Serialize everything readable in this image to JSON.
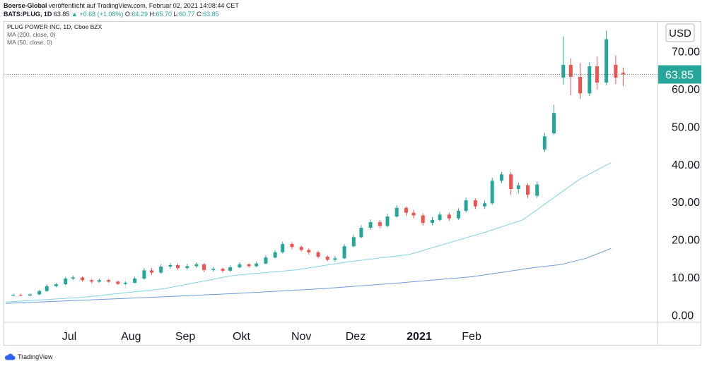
{
  "header": {
    "brand": "Boerse-Global",
    "published": " veröffentlicht auf TradingView.com, Februar 02, 2021 14:08:44 CET"
  },
  "ticker": {
    "symbol": "BATS:PLUG, 1D",
    "last": "63.85",
    "arrow": "▲",
    "change": "+0.68 (+1.08%)",
    "o_label": "O:",
    "o": "64.29",
    "h_label": "H:",
    "h": "65.70",
    "l_label": "L:",
    "l": "60.77",
    "c_label": "C:",
    "c": "63.85"
  },
  "legend": {
    "title": "PLUG POWER INC, 1D, Cboe BZX",
    "ma200": "MA (200, close, 0)",
    "ma50": "MA (50, close, 0)"
  },
  "footer": {
    "brand": "TradingView"
  },
  "colors": {
    "up": "#26a69a",
    "down": "#ef5350",
    "ma50": "#7fd3e6",
    "ma200": "#6b9bd9",
    "grid": "#c8cbd1"
  },
  "chart_data": {
    "type": "candlestick",
    "currency": "USD",
    "last_price": 63.85,
    "last_price_label": "63.85",
    "y_ticks": [
      "70.00",
      "60.00",
      "50.00",
      "40.00",
      "30.00",
      "20.00",
      "10.00",
      "0.00"
    ],
    "y_tick_values": [
      70,
      60,
      50,
      40,
      30,
      20,
      10,
      0
    ],
    "ylim": [
      -2,
      78
    ],
    "x_ticks": [
      "Jul",
      "Aug",
      "Sep",
      "Okt",
      "Nov",
      "Dez",
      "2021",
      "Feb"
    ],
    "x_tick_dates": [
      "2020-07-01",
      "2020-08-03",
      "2020-09-01",
      "2020-10-01",
      "2020-11-02",
      "2020-12-01",
      "2021-01-04",
      "2021-02-01"
    ],
    "bars": [
      {
        "t": "2020-06-01",
        "o": 5.2,
        "c": 5.3,
        "h": 5.6,
        "l": 4.9
      },
      {
        "t": "2020-06-05",
        "o": 5.3,
        "c": 5.1,
        "h": 5.6,
        "l": 4.9
      },
      {
        "t": "2020-06-10",
        "o": 5.1,
        "c": 5.4,
        "h": 5.7,
        "l": 4.9
      },
      {
        "t": "2020-06-15",
        "o": 5.4,
        "c": 6.3,
        "h": 6.6,
        "l": 5.2
      },
      {
        "t": "2020-06-19",
        "o": 6.3,
        "c": 7.6,
        "h": 8.0,
        "l": 6.1
      },
      {
        "t": "2020-06-24",
        "o": 7.6,
        "c": 8.1,
        "h": 8.4,
        "l": 7.3
      },
      {
        "t": "2020-06-29",
        "o": 8.1,
        "c": 9.6,
        "h": 10.1,
        "l": 7.9
      },
      {
        "t": "2020-07-03",
        "o": 9.6,
        "c": 9.9,
        "h": 10.4,
        "l": 9.2
      },
      {
        "t": "2020-07-08",
        "o": 9.9,
        "c": 9.2,
        "h": 10.2,
        "l": 8.8
      },
      {
        "t": "2020-07-13",
        "o": 9.2,
        "c": 8.8,
        "h": 9.5,
        "l": 8.3
      },
      {
        "t": "2020-07-17",
        "o": 8.8,
        "c": 9.2,
        "h": 9.6,
        "l": 8.5
      },
      {
        "t": "2020-07-22",
        "o": 9.2,
        "c": 8.8,
        "h": 9.5,
        "l": 8.5
      },
      {
        "t": "2020-07-27",
        "o": 8.8,
        "c": 8.2,
        "h": 9.1,
        "l": 7.9
      },
      {
        "t": "2020-07-31",
        "o": 8.2,
        "c": 8.5,
        "h": 8.9,
        "l": 7.9
      },
      {
        "t": "2020-08-05",
        "o": 8.5,
        "c": 9.6,
        "h": 10.1,
        "l": 8.3
      },
      {
        "t": "2020-08-10",
        "o": 9.6,
        "c": 11.8,
        "h": 12.4,
        "l": 9.3
      },
      {
        "t": "2020-08-14",
        "o": 11.8,
        "c": 11.2,
        "h": 12.4,
        "l": 10.6
      },
      {
        "t": "2020-08-19",
        "o": 11.2,
        "c": 12.8,
        "h": 13.4,
        "l": 10.9
      },
      {
        "t": "2020-08-24",
        "o": 12.8,
        "c": 13.2,
        "h": 13.8,
        "l": 12.2
      },
      {
        "t": "2020-08-28",
        "o": 13.2,
        "c": 12.4,
        "h": 13.6,
        "l": 11.9
      },
      {
        "t": "2020-09-02",
        "o": 12.4,
        "c": 12.9,
        "h": 13.5,
        "l": 12.0
      },
      {
        "t": "2020-09-07",
        "o": 12.9,
        "c": 13.4,
        "h": 13.9,
        "l": 12.5
      },
      {
        "t": "2020-09-11",
        "o": 13.4,
        "c": 11.9,
        "h": 13.7,
        "l": 11.3
      },
      {
        "t": "2020-09-16",
        "o": 11.9,
        "c": 12.2,
        "h": 12.7,
        "l": 11.5
      },
      {
        "t": "2020-09-21",
        "o": 12.2,
        "c": 11.7,
        "h": 12.5,
        "l": 11.2
      },
      {
        "t": "2020-09-25",
        "o": 11.7,
        "c": 12.6,
        "h": 13.1,
        "l": 11.4
      },
      {
        "t": "2020-09-30",
        "o": 12.6,
        "c": 13.4,
        "h": 13.9,
        "l": 12.3
      },
      {
        "t": "2020-10-05",
        "o": 13.4,
        "c": 12.9,
        "h": 13.7,
        "l": 12.5
      },
      {
        "t": "2020-10-09",
        "o": 12.9,
        "c": 13.6,
        "h": 14.1,
        "l": 12.6
      },
      {
        "t": "2020-10-14",
        "o": 13.6,
        "c": 15.2,
        "h": 15.8,
        "l": 13.4
      },
      {
        "t": "2020-10-19",
        "o": 15.2,
        "c": 16.6,
        "h": 17.2,
        "l": 15.0
      },
      {
        "t": "2020-10-23",
        "o": 16.6,
        "c": 18.8,
        "h": 19.4,
        "l": 16.3
      },
      {
        "t": "2020-10-28",
        "o": 18.8,
        "c": 18.0,
        "h": 19.3,
        "l": 17.4
      },
      {
        "t": "2020-11-02",
        "o": 18.0,
        "c": 17.2,
        "h": 18.4,
        "l": 16.8
      },
      {
        "t": "2020-11-06",
        "o": 17.2,
        "c": 16.6,
        "h": 17.6,
        "l": 16.0
      },
      {
        "t": "2020-11-11",
        "o": 16.6,
        "c": 15.4,
        "h": 17.0,
        "l": 15.0
      },
      {
        "t": "2020-11-16",
        "o": 15.4,
        "c": 14.6,
        "h": 15.8,
        "l": 14.2
      },
      {
        "t": "2020-11-20",
        "o": 14.6,
        "c": 15.0,
        "h": 15.6,
        "l": 14.1
      },
      {
        "t": "2020-11-25",
        "o": 15.0,
        "c": 18.2,
        "h": 18.8,
        "l": 14.8
      },
      {
        "t": "2020-11-30",
        "o": 18.2,
        "c": 20.6,
        "h": 21.2,
        "l": 17.9
      },
      {
        "t": "2020-12-04",
        "o": 20.6,
        "c": 23.1,
        "h": 23.8,
        "l": 20.3
      },
      {
        "t": "2020-12-09",
        "o": 23.1,
        "c": 24.6,
        "h": 25.3,
        "l": 22.6
      },
      {
        "t": "2020-12-14",
        "o": 24.6,
        "c": 23.6,
        "h": 25.2,
        "l": 22.9
      },
      {
        "t": "2020-12-18",
        "o": 23.6,
        "c": 26.1,
        "h": 26.8,
        "l": 23.2
      },
      {
        "t": "2020-12-23",
        "o": 26.1,
        "c": 28.4,
        "h": 29.1,
        "l": 25.8
      },
      {
        "t": "2020-12-28",
        "o": 28.4,
        "c": 27.1,
        "h": 28.8,
        "l": 26.3
      },
      {
        "t": "2021-01-01",
        "o": 27.1,
        "c": 26.4,
        "h": 27.9,
        "l": 25.6
      },
      {
        "t": "2021-01-06",
        "o": 26.4,
        "c": 24.4,
        "h": 26.9,
        "l": 23.7
      },
      {
        "t": "2021-01-11",
        "o": 24.4,
        "c": 25.2,
        "h": 26.0,
        "l": 23.8
      },
      {
        "t": "2021-01-15",
        "o": 25.2,
        "c": 26.6,
        "h": 27.3,
        "l": 24.8
      },
      {
        "t": "2021-01-20",
        "o": 26.6,
        "c": 25.6,
        "h": 27.1,
        "l": 24.9
      },
      {
        "t": "2021-01-25",
        "o": 25.6,
        "c": 27.6,
        "h": 28.3,
        "l": 25.2
      },
      {
        "t": "2021-01-29",
        "o": 27.6,
        "c": 30.4,
        "h": 31.1,
        "l": 27.2
      },
      {
        "t": "2021-02-03",
        "o": 30.4,
        "c": 28.8,
        "h": 30.9,
        "l": 28.1
      },
      {
        "t": "2021-02-08",
        "o": 28.8,
        "c": 29.6,
        "h": 30.3,
        "l": 28.1
      },
      {
        "t": "2021-02-12",
        "o": 29.6,
        "c": 35.6,
        "h": 36.4,
        "l": 29.2
      },
      {
        "t": "2021-02-17",
        "o": 35.6,
        "c": 37.3,
        "h": 38.0,
        "l": 35.0
      },
      {
        "t": "2021-02-22",
        "o": 37.3,
        "c": 33.4,
        "h": 37.9,
        "l": 31.8
      },
      {
        "t": "2021-02-26",
        "o": 33.4,
        "c": 34.4,
        "h": 35.1,
        "l": 32.2
      },
      {
        "t": "2021-03-03",
        "o": 34.4,
        "c": 31.9,
        "h": 34.9,
        "l": 31.0
      },
      {
        "t": "2021-03-08",
        "o": 31.6,
        "c": 34.6,
        "h": 35.4,
        "l": 31.0
      },
      {
        "t": "2021-03-12",
        "o": 43.9,
        "c": 47.4,
        "h": 48.3,
        "l": 43.2
      },
      {
        "t": "2021-03-17",
        "o": 48.2,
        "c": 53.6,
        "h": 55.8,
        "l": 47.8
      },
      {
        "t": "2021-03-22",
        "o": 63.0,
        "c": 66.4,
        "h": 74.0,
        "l": 61.2
      },
      {
        "t": "2021-03-26",
        "o": 66.4,
        "c": 63.2,
        "h": 68.1,
        "l": 58.3
      },
      {
        "t": "2021-03-31",
        "o": 63.2,
        "c": 58.8,
        "h": 66.9,
        "l": 57.3
      },
      {
        "t": "2021-04-05",
        "o": 58.8,
        "c": 66.0,
        "h": 67.2,
        "l": 58.1
      },
      {
        "t": "2021-04-09",
        "o": 66.0,
        "c": 61.7,
        "h": 68.6,
        "l": 59.8
      },
      {
        "t": "2021-04-14",
        "o": 61.7,
        "c": 73.2,
        "h": 75.5,
        "l": 61.0
      },
      {
        "t": "2021-04-19",
        "o": 66.4,
        "c": 63.0,
        "h": 68.9,
        "l": 61.3
      },
      {
        "t": "2021-04-23",
        "o": 64.29,
        "c": 63.85,
        "h": 65.7,
        "l": 60.77
      }
    ],
    "ma50": [
      [
        0,
        3.4
      ],
      [
        0.12,
        4.6
      ],
      [
        0.25,
        6.9
      ],
      [
        0.36,
        10.4
      ],
      [
        0.46,
        11.9
      ],
      [
        0.54,
        14.0
      ],
      [
        0.64,
        16.0
      ],
      [
        0.76,
        21.9
      ],
      [
        0.82,
        25.2
      ],
      [
        0.86,
        30.0
      ],
      [
        0.91,
        36.0
      ],
      [
        0.96,
        40.4
      ]
    ],
    "ma200": [
      [
        0,
        3.0
      ],
      [
        0.2,
        4.4
      ],
      [
        0.36,
        5.6
      ],
      [
        0.5,
        6.9
      ],
      [
        0.62,
        8.4
      ],
      [
        0.74,
        10.1
      ],
      [
        0.84,
        12.6
      ],
      [
        0.88,
        13.3
      ],
      [
        0.92,
        15.0
      ],
      [
        0.96,
        17.6
      ]
    ]
  }
}
